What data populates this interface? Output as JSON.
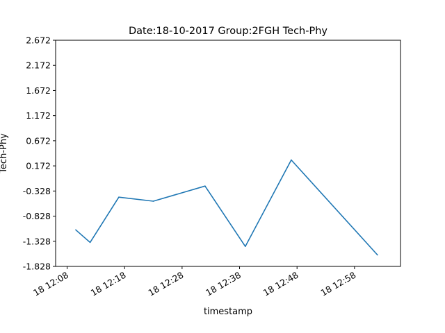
{
  "chart_data": {
    "type": "line",
    "title": "Date:18-10-2017 Group:2FGH Tech-Phy",
    "xlabel": "timestamp",
    "ylabel": "Tech-Phy",
    "grid": false,
    "ylim": [
      -1.828,
      2.672
    ],
    "xlim": [
      "18 12:06",
      "18 13:06"
    ],
    "yticks": [
      -1.828,
      -1.328,
      -0.828,
      -0.328,
      0.172,
      0.672,
      1.172,
      1.672,
      2.172,
      2.672
    ],
    "yticklabels": [
      "-1.828",
      "-1.328",
      "-0.828",
      "-0.328",
      "0.172",
      "0.672",
      "1.172",
      "1.672",
      "2.172",
      "2.672"
    ],
    "xticks": [
      "18 12:08",
      "18 12:18",
      "18 12:28",
      "18 12:38",
      "18 12:48",
      "18 12:58"
    ],
    "xticklabels": [
      "18 12:08",
      "18 12:18",
      "18 12:28",
      "18 12:38",
      "18 12:48",
      "18 12:58"
    ],
    "series": [
      {
        "color": "#1f77b4",
        "x": [
          "18 12:09.5",
          "18 12:12",
          "18 12:17",
          "18 12:23",
          "18 12:32",
          "18 12:39",
          "18 12:47",
          "18 13:02"
        ],
        "values": [
          -1.1,
          -1.35,
          -0.45,
          -0.53,
          -0.23,
          -1.43,
          0.29,
          -1.6
        ]
      }
    ]
  }
}
